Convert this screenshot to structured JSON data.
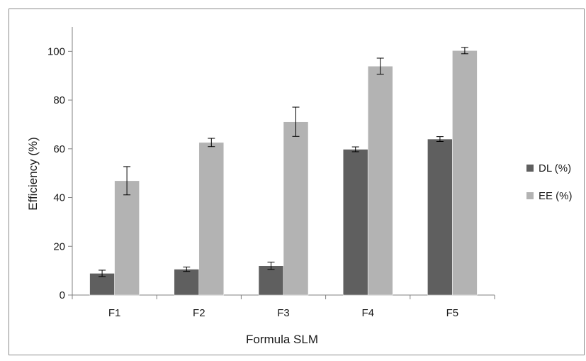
{
  "chart_data": {
    "type": "bar",
    "title": "",
    "xlabel": "Formula SLM",
    "ylabel": "Efficiency (%)",
    "categories": [
      "F1",
      "F2",
      "F3",
      "F4",
      "F5"
    ],
    "ylim": [
      0,
      110
    ],
    "yticks": [
      0,
      20,
      40,
      60,
      80,
      100
    ],
    "grid": false,
    "legend_position": "right",
    "series": [
      {
        "name": "DL (%)",
        "color": "#5f5f5f",
        "values": [
          8.9,
          10.6,
          12.0,
          59.8,
          64.0
        ],
        "errors": [
          1.3,
          0.9,
          1.5,
          1.0,
          1.0
        ]
      },
      {
        "name": "EE (%)",
        "color": "#b3b3b3",
        "values": [
          46.9,
          62.6,
          71.1,
          93.9,
          100.3
        ],
        "errors": [
          5.8,
          1.7,
          6.0,
          3.3,
          1.3
        ]
      }
    ]
  }
}
